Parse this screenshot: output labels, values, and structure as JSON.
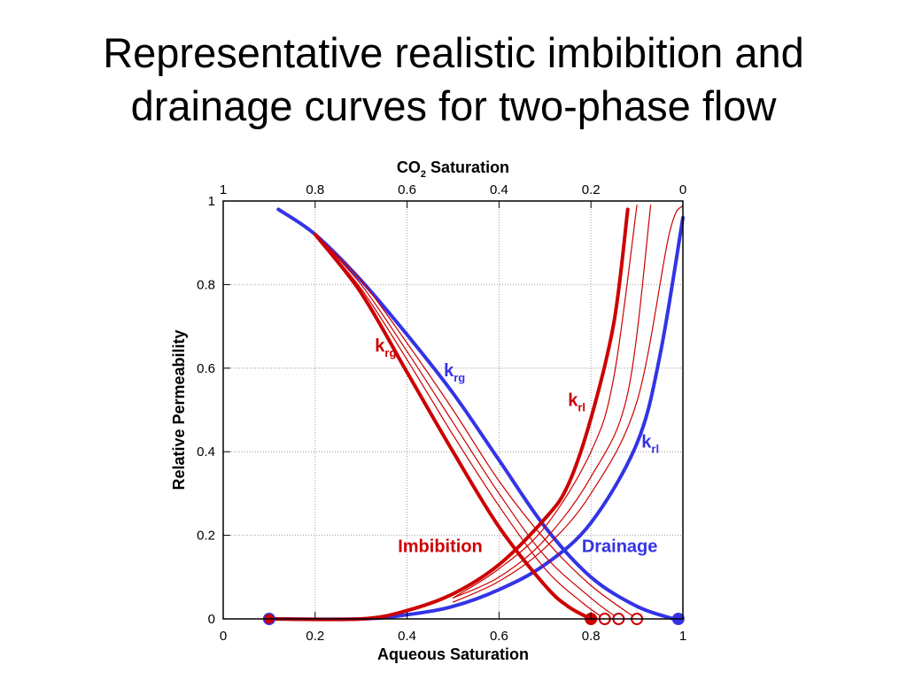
{
  "title_line1": "Representative realistic imbibition and",
  "title_line2": "drainage curves for two-phase flow",
  "chart_data": {
    "type": "line",
    "xlabel": "Aqueous Saturation",
    "x2label_main": "CO",
    "x2label_sub": "2",
    "x2label_rest": " Saturation",
    "ylabel": "Relative Permeability",
    "xlim": [
      0,
      1
    ],
    "ylim": [
      0,
      1
    ],
    "x_ticks": [
      "0",
      "0.2",
      "0.4",
      "0.6",
      "0.8",
      "1"
    ],
    "x2_ticks": [
      "1",
      "0.8",
      "0.6",
      "0.4",
      "0.2",
      "0"
    ],
    "y_ticks": [
      "0",
      "0.2",
      "0.4",
      "0.6",
      "0.8",
      "1"
    ],
    "grid": true,
    "colors": {
      "imbibition": "#cc0000",
      "drainage": "#3333e6"
    },
    "series": [
      {
        "group": "drainage",
        "weight": "thick",
        "points": [
          [
            0.12,
            0.98
          ],
          [
            0.2,
            0.92
          ],
          [
            0.3,
            0.81
          ],
          [
            0.4,
            0.68
          ],
          [
            0.5,
            0.54
          ],
          [
            0.6,
            0.38
          ],
          [
            0.7,
            0.22
          ],
          [
            0.8,
            0.1
          ],
          [
            0.9,
            0.03
          ],
          [
            0.98,
            0.0
          ]
        ]
      },
      {
        "group": "drainage",
        "weight": "thick",
        "points": [
          [
            0.1,
            0.0
          ],
          [
            0.3,
            0.0
          ],
          [
            0.4,
            0.01
          ],
          [
            0.5,
            0.03
          ],
          [
            0.6,
            0.07
          ],
          [
            0.7,
            0.13
          ],
          [
            0.8,
            0.23
          ],
          [
            0.9,
            0.42
          ],
          [
            0.95,
            0.63
          ],
          [
            1.0,
            0.96
          ]
        ]
      },
      {
        "group": "imbibition",
        "weight": "thick",
        "points": [
          [
            0.2,
            0.92
          ],
          [
            0.3,
            0.78
          ],
          [
            0.4,
            0.59
          ],
          [
            0.5,
            0.4
          ],
          [
            0.6,
            0.22
          ],
          [
            0.7,
            0.08
          ],
          [
            0.75,
            0.03
          ],
          [
            0.8,
            0.0
          ]
        ]
      },
      {
        "group": "imbibition",
        "weight": "thin",
        "points": [
          [
            0.2,
            0.92
          ],
          [
            0.3,
            0.79
          ],
          [
            0.4,
            0.62
          ],
          [
            0.5,
            0.44
          ],
          [
            0.6,
            0.27
          ],
          [
            0.7,
            0.12
          ],
          [
            0.78,
            0.04
          ],
          [
            0.83,
            0.0
          ]
        ]
      },
      {
        "group": "imbibition",
        "weight": "thin",
        "points": [
          [
            0.2,
            0.92
          ],
          [
            0.3,
            0.8
          ],
          [
            0.4,
            0.64
          ],
          [
            0.5,
            0.47
          ],
          [
            0.6,
            0.3
          ],
          [
            0.7,
            0.15
          ],
          [
            0.8,
            0.05
          ],
          [
            0.86,
            0.0
          ]
        ]
      },
      {
        "group": "imbibition",
        "weight": "thin",
        "points": [
          [
            0.2,
            0.92
          ],
          [
            0.3,
            0.81
          ],
          [
            0.4,
            0.66
          ],
          [
            0.5,
            0.5
          ],
          [
            0.6,
            0.33
          ],
          [
            0.7,
            0.19
          ],
          [
            0.8,
            0.08
          ],
          [
            0.9,
            0.0
          ]
        ]
      },
      {
        "group": "imbibition",
        "weight": "thick",
        "points": [
          [
            0.1,
            0.0
          ],
          [
            0.3,
            0.0
          ],
          [
            0.4,
            0.02
          ],
          [
            0.5,
            0.06
          ],
          [
            0.6,
            0.13
          ],
          [
            0.7,
            0.24
          ],
          [
            0.75,
            0.32
          ],
          [
            0.8,
            0.48
          ],
          [
            0.85,
            0.71
          ],
          [
            0.88,
            0.98
          ]
        ]
      },
      {
        "group": "imbibition",
        "weight": "thin",
        "points": [
          [
            0.5,
            0.05
          ],
          [
            0.6,
            0.12
          ],
          [
            0.7,
            0.22
          ],
          [
            0.8,
            0.4
          ],
          [
            0.85,
            0.58
          ],
          [
            0.9,
            0.99
          ]
        ]
      },
      {
        "group": "imbibition",
        "weight": "thin",
        "points": [
          [
            0.5,
            0.05
          ],
          [
            0.6,
            0.1
          ],
          [
            0.7,
            0.19
          ],
          [
            0.8,
            0.34
          ],
          [
            0.88,
            0.54
          ],
          [
            0.93,
            0.99
          ]
        ]
      },
      {
        "group": "imbibition",
        "weight": "thin",
        "points": [
          [
            0.5,
            0.04
          ],
          [
            0.6,
            0.09
          ],
          [
            0.7,
            0.17
          ],
          [
            0.8,
            0.3
          ],
          [
            0.9,
            0.52
          ],
          [
            0.97,
            0.92
          ],
          [
            1.0,
            0.99
          ]
        ]
      }
    ],
    "markers": [
      {
        "x": 0.1,
        "y": 0,
        "color": "#3333e6",
        "filled": true
      },
      {
        "x": 0.1,
        "y": 0,
        "color": "#cc0000",
        "filled": true,
        "small": true
      },
      {
        "x": 0.8,
        "y": 0,
        "color": "#cc0000",
        "filled": true
      },
      {
        "x": 0.83,
        "y": 0,
        "color": "#cc0000",
        "filled": false
      },
      {
        "x": 0.86,
        "y": 0,
        "color": "#cc0000",
        "filled": false
      },
      {
        "x": 0.9,
        "y": 0,
        "color": "#cc0000",
        "filled": false
      },
      {
        "x": 0.99,
        "y": 0,
        "color": "#3333e6",
        "filled": true
      }
    ],
    "annotations": [
      {
        "main": "k",
        "sub": "rg",
        "color": "#cc0000",
        "x": 0.33,
        "y": 0.64
      },
      {
        "main": "k",
        "sub": "rg",
        "color": "#3333e6",
        "x": 0.48,
        "y": 0.58
      },
      {
        "main": "k",
        "sub": "rl",
        "color": "#cc0000",
        "x": 0.75,
        "y": 0.51
      },
      {
        "main": "k",
        "sub": "rl",
        "color": "#3333e6",
        "x": 0.91,
        "y": 0.41
      },
      {
        "main": "Imbibition",
        "sub": "",
        "color": "#cc0000",
        "x": 0.38,
        "y": 0.16
      },
      {
        "main": "Drainage",
        "sub": "",
        "color": "#3333e6",
        "x": 0.78,
        "y": 0.16
      }
    ]
  }
}
